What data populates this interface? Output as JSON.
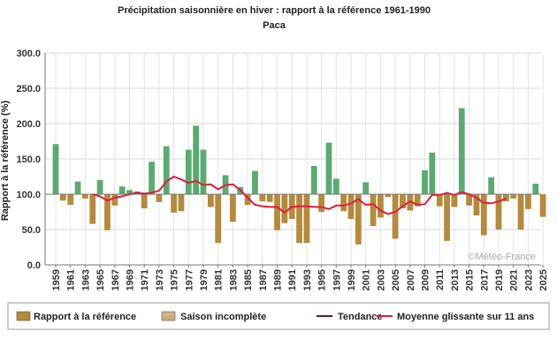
{
  "chart_data": {
    "type": "bar",
    "title": "Précipitation saisonnière en hiver : rapport à la référence 1961-1990",
    "subtitle": "Paca",
    "ylabel": "Rapport à la référence (%)",
    "xlabel": "",
    "ylim": [
      0,
      300
    ],
    "yticks": [
      "0.0",
      "50.0",
      "100.0",
      "150.0",
      "200.0",
      "250.0",
      "300.0"
    ],
    "baseline": 100,
    "x_first_year": 1959,
    "x_last_year": 2025,
    "xtick_years": [
      1959,
      1961,
      1963,
      1965,
      1967,
      1969,
      1971,
      1973,
      1975,
      1977,
      1979,
      1981,
      1983,
      1985,
      1987,
      1989,
      1991,
      1993,
      1995,
      1997,
      1999,
      2001,
      2003,
      2005,
      2007,
      2009,
      2011,
      2013,
      2015,
      2017,
      2019,
      2021,
      2023,
      2025
    ],
    "grid": true,
    "watermark": "©Météo-France",
    "colors": {
      "above": "#5aab72",
      "below": "#b58a3c",
      "moving_average": "#dc1f3e",
      "trend": "#6b1a1a"
    },
    "series": [
      {
        "name": "Rapport à la référence",
        "x": [
          1959,
          1960,
          1961,
          1962,
          1963,
          1964,
          1965,
          1966,
          1967,
          1968,
          1969,
          1970,
          1971,
          1972,
          1973,
          1974,
          1975,
          1976,
          1977,
          1978,
          1979,
          1980,
          1981,
          1982,
          1983,
          1984,
          1985,
          1986,
          1987,
          1988,
          1989,
          1990,
          1991,
          1992,
          1993,
          1994,
          1995,
          1996,
          1997,
          1998,
          1999,
          2000,
          2001,
          2002,
          2003,
          2004,
          2005,
          2006,
          2007,
          2008,
          2009,
          2010,
          2011,
          2012,
          2013,
          2014,
          2015,
          2016,
          2017,
          2018,
          2019,
          2020,
          2021,
          2022,
          2023,
          2024,
          2025
        ],
        "values": [
          171,
          91,
          85,
          118,
          94,
          58,
          120,
          49,
          84,
          111,
          106,
          104,
          80,
          146,
          89,
          168,
          74,
          76,
          163,
          197,
          163,
          82,
          31,
          127,
          61,
          110,
          85,
          133,
          90,
          89,
          49,
          59,
          65,
          31,
          31,
          140,
          75,
          173,
          122,
          76,
          65,
          29,
          117,
          55,
          67,
          96,
          37,
          80,
          77,
          83,
          134,
          159,
          83,
          34,
          82,
          222,
          84,
          70,
          42,
          124,
          50,
          90,
          94,
          50,
          79,
          115,
          68
        ]
      },
      {
        "name": "Moyenne glissante sur 11 ans",
        "x": [
          1964,
          1965,
          1966,
          1967,
          1968,
          1969,
          1970,
          1971,
          1972,
          1973,
          1974,
          1975,
          1976,
          1977,
          1978,
          1979,
          1980,
          1981,
          1982,
          1983,
          1984,
          1985,
          1986,
          1987,
          1988,
          1989,
          1990,
          1991,
          1992,
          1993,
          1994,
          1995,
          1996,
          1997,
          1998,
          1999,
          2000,
          2001,
          2002,
          2003,
          2004,
          2005,
          2006,
          2007,
          2008,
          2009,
          2010,
          2011,
          2012,
          2013,
          2014,
          2015,
          2016,
          2017,
          2018,
          2019,
          2020
        ],
        "values": [
          100,
          97,
          91,
          95,
          97,
          100,
          102,
          101,
          102,
          105,
          118,
          125,
          121,
          116,
          119,
          113,
          114,
          107,
          113,
          114,
          106,
          95,
          85,
          83,
          82,
          82,
          74,
          82,
          83,
          83,
          82,
          82,
          79,
          84,
          84,
          87,
          93,
          85,
          86,
          77,
          72,
          75,
          83,
          90,
          85,
          86,
          99,
          99,
          102,
          99,
          103,
          100,
          95,
          88,
          87,
          90,
          94
        ]
      }
    ],
    "legend": {
      "placement": "bottom",
      "items": [
        {
          "label": "Rapport à la référence",
          "symbol": "swatch",
          "color": "#b58a3c"
        },
        {
          "label": "Saison incomplète",
          "symbol": "swatch-split",
          "color": "#5aab72"
        },
        {
          "label": "Tendance",
          "symbol": "line",
          "color": "#6b1a1a"
        },
        {
          "label": "Moyenne glissante sur 11 ans",
          "symbol": "line",
          "color": "#dc1f3e"
        }
      ]
    }
  }
}
